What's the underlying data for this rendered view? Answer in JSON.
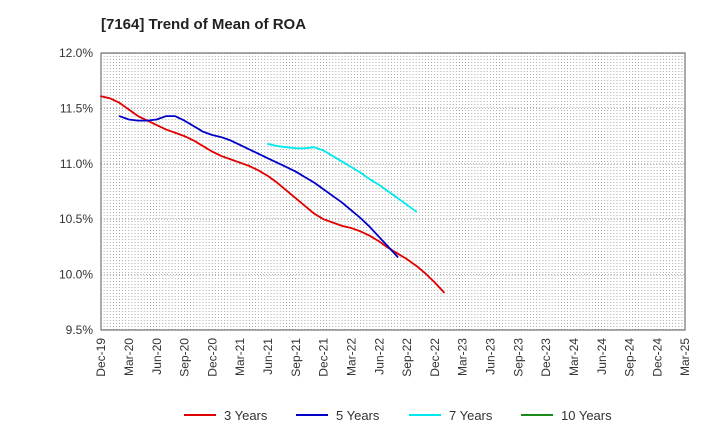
{
  "chart_data": {
    "type": "line",
    "title": "[7164]  Trend of Mean of ROA",
    "xlabel": "",
    "ylabel": "",
    "ylim": [
      9.5,
      12.0
    ],
    "y_ticks": [
      "9.5%",
      "10.0%",
      "10.5%",
      "11.0%",
      "11.5%",
      "12.0%"
    ],
    "y_tick_values": [
      9.5,
      10.0,
      10.5,
      11.0,
      11.5,
      12.0
    ],
    "x_tick_labels": [
      "Dec-19",
      "Mar-20",
      "Jun-20",
      "Sep-20",
      "Dec-20",
      "Mar-21",
      "Jun-21",
      "Sep-21",
      "Dec-21",
      "Mar-22",
      "Jun-22",
      "Sep-22",
      "Dec-22",
      "Mar-23",
      "Jun-23",
      "Sep-23",
      "Dec-23",
      "Mar-24",
      "Jun-24",
      "Sep-24",
      "Dec-24",
      "Mar-25"
    ],
    "grid": true,
    "legend_position": "bottom",
    "series": [
      {
        "name": "3 Years",
        "color": "#e00000",
        "start_index": 0,
        "values": [
          11.61,
          11.59,
          11.55,
          11.49,
          11.43,
          11.39,
          11.35,
          11.31,
          11.28,
          11.25,
          11.21,
          11.16,
          11.11,
          11.07,
          11.04,
          11.01,
          10.98,
          10.94,
          10.89,
          10.83,
          10.76,
          10.69,
          10.62,
          10.55,
          10.5,
          10.47,
          10.44,
          10.42,
          10.39,
          10.35,
          10.3,
          10.24,
          10.19,
          10.14,
          10.08,
          10.01,
          9.93,
          9.84
        ]
      },
      {
        "name": "5 Years",
        "color": "#0000c8",
        "start_index": 2,
        "values": [
          11.43,
          11.4,
          11.39,
          11.39,
          11.4,
          11.43,
          11.43,
          11.39,
          11.34,
          11.29,
          11.26,
          11.24,
          11.21,
          11.17,
          11.13,
          11.09,
          11.05,
          11.01,
          10.97,
          10.93,
          10.88,
          10.83,
          10.77,
          10.71,
          10.65,
          10.58,
          10.51,
          10.43,
          10.34,
          10.25,
          10.16
        ]
      },
      {
        "name": "7 Years",
        "color": "#00e8f0",
        "start_index": 18,
        "values": [
          11.18,
          11.16,
          11.15,
          11.14,
          11.14,
          11.15,
          11.12,
          11.07,
          11.02,
          10.97,
          10.92,
          10.86,
          10.81,
          10.75,
          10.69,
          10.63,
          10.57
        ]
      },
      {
        "name": "10 Years",
        "color": "#1a8a1a",
        "start_index": 0,
        "values": []
      }
    ]
  }
}
